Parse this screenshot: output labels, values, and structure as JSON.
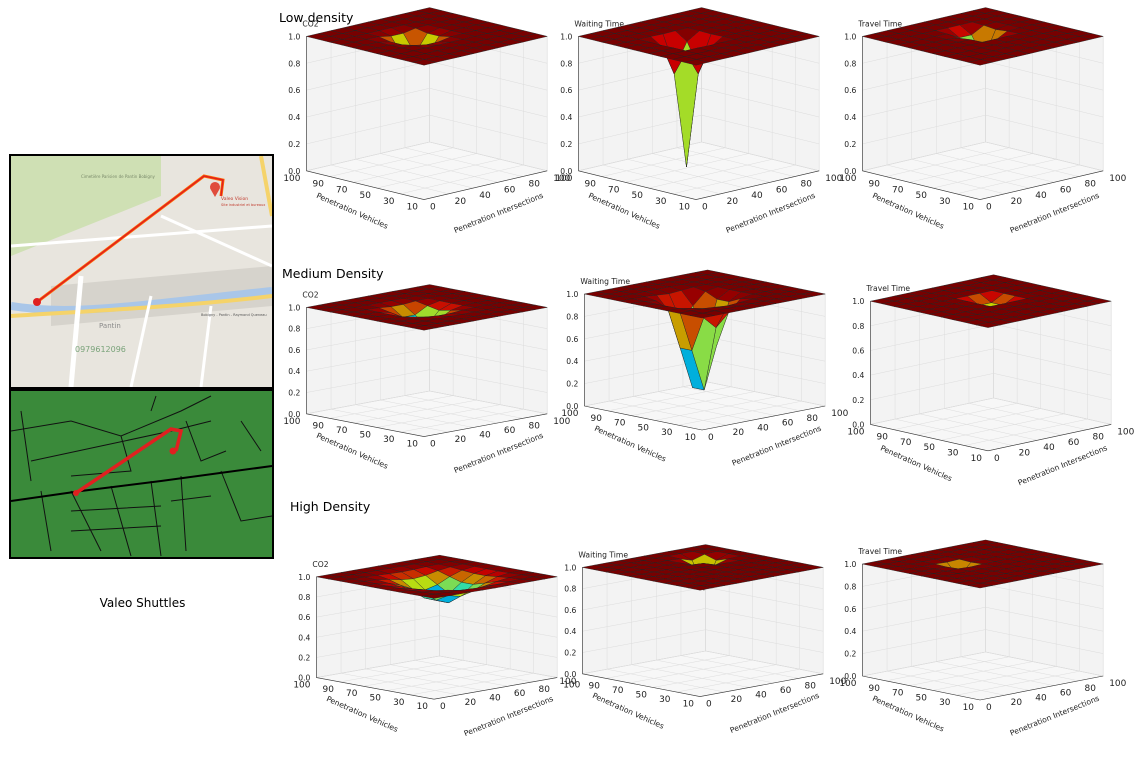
{
  "caption": "Valeo Shuttles",
  "map": {
    "place_name": "Valeo Vision",
    "place_sub": "Site industriel et bureaux",
    "labels": [
      "Cimetière Parisien de Pantin Bobigny",
      "Pantin",
      "Bobigny - Pantin - Raymond Queneau",
      "0979612096"
    ]
  },
  "sections": [
    {
      "title": "Low density"
    },
    {
      "title": "Medium Density"
    },
    {
      "title": "High Density"
    }
  ],
  "axes": {
    "x_label": "Penetration Vehicles",
    "y_label": "Penetration Intersections",
    "x_ticks": [
      "10",
      "30",
      "50",
      "70",
      "90",
      "100"
    ],
    "y_ticks": [
      "100",
      "80",
      "60",
      "40",
      "20",
      "0"
    ],
    "z_ticks": [
      "0.0",
      "0.2",
      "0.4",
      "0.6",
      "0.8",
      "1.0"
    ]
  },
  "chart_data": [
    {
      "type": "surface3d",
      "title": "CO2",
      "density": "Low density",
      "xlabel": "Penetration Vehicles",
      "ylabel": "Penetration Intersections",
      "zlim": [
        0,
        1
      ],
      "min_value": 0.75,
      "dip_center": [
        0.45,
        0.55
      ],
      "dip_spread": 0.07
    },
    {
      "type": "surface3d",
      "title": "Waiting Time",
      "density": "Low density",
      "xlabel": "Penetration Vehicles",
      "ylabel": "Penetration Intersections",
      "zlim": [
        0,
        1
      ],
      "min_value": 0.05,
      "dip_center": [
        0.5,
        0.6
      ],
      "dip_spread": 0.06
    },
    {
      "type": "surface3d",
      "title": "Travel Time",
      "density": "Low density",
      "xlabel": "Penetration Vehicles",
      "ylabel": "Penetration Intersections",
      "zlim": [
        0,
        1
      ],
      "min_value": 0.7,
      "dip_center": [
        0.4,
        0.45
      ],
      "dip_spread": 0.06
    },
    {
      "type": "surface3d",
      "title": "CO2",
      "density": "Medium Density",
      "xlabel": "Penetration Vehicles",
      "ylabel": "Penetration Intersections",
      "zlim": [
        0,
        1
      ],
      "min_value": 0.8,
      "dip_center": [
        0.5,
        0.55
      ],
      "dip_spread": 0.09
    },
    {
      "type": "surface3d",
      "title": "Waiting Time",
      "density": "Medium Density",
      "xlabel": "Penetration Vehicles",
      "ylabel": "Penetration Intersections",
      "zlim": [
        0,
        1
      ],
      "min_value": 0.05,
      "dip_center": [
        0.55,
        0.6
      ],
      "dip_spread": 0.09
    },
    {
      "type": "surface3d",
      "title": "Travel Time",
      "density": "Medium Density",
      "xlabel": "Penetration Vehicles",
      "ylabel": "Penetration Intersections",
      "zlim": [
        0,
        1
      ],
      "min_value": 0.85,
      "dip_center": [
        0.45,
        0.45
      ],
      "dip_spread": 0.05
    },
    {
      "type": "surface3d",
      "title": "CO2",
      "density": "High Density",
      "xlabel": "Penetration Vehicles",
      "ylabel": "Penetration Intersections",
      "zlim": [
        0,
        1
      ],
      "min_value": 0.75,
      "dip_center": [
        0.55,
        0.5
      ],
      "dip_spread": 0.15
    },
    {
      "type": "surface3d",
      "title": "Waiting Time",
      "density": "High Density",
      "xlabel": "Penetration Vehicles",
      "ylabel": "Penetration Intersections",
      "zlim": [
        0,
        1
      ],
      "min_value": 0.7,
      "dip_center": [
        0.3,
        0.3
      ],
      "dip_spread": 0.05
    },
    {
      "type": "surface3d",
      "title": "Travel Time",
      "density": "High Density",
      "xlabel": "Penetration Vehicles",
      "ylabel": "Penetration Intersections",
      "zlim": [
        0,
        1
      ],
      "min_value": 0.88,
      "dip_center": [
        0.4,
        0.6
      ],
      "dip_spread": 0.04
    }
  ]
}
